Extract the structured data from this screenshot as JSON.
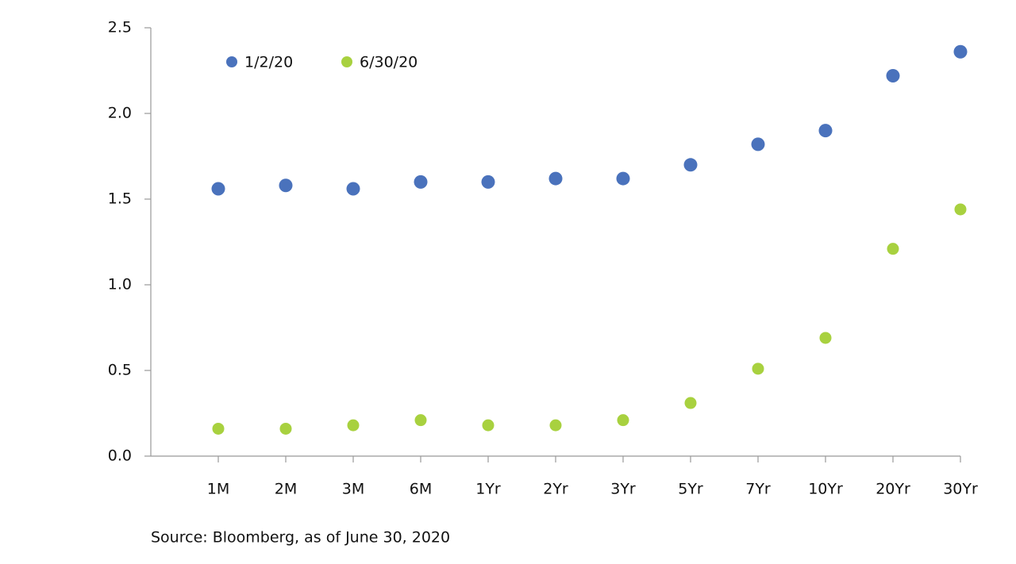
{
  "chart_data": {
    "type": "scatter",
    "categories": [
      "1M",
      "2M",
      "3M",
      "6M",
      "1Yr",
      "2Yr",
      "3Yr",
      "5Yr",
      "7Yr",
      "10Yr",
      "20Yr",
      "30Yr"
    ],
    "series": [
      {
        "name": "1/2/20",
        "color": "#4a72bc",
        "values": [
          1.56,
          1.58,
          1.56,
          1.6,
          1.6,
          1.62,
          1.62,
          1.7,
          1.82,
          1.9,
          2.22,
          2.36
        ]
      },
      {
        "name": "6/30/20",
        "color": "#a8d13f",
        "values": [
          0.16,
          0.16,
          0.18,
          0.21,
          0.18,
          0.18,
          0.21,
          0.31,
          0.51,
          0.69,
          1.21,
          1.44
        ]
      }
    ],
    "ylim": [
      0,
      2.5
    ],
    "yticks": [
      {
        "value": 0,
        "label": "0.0"
      },
      0.5,
      {
        "value": 1,
        "label": "1.0"
      },
      1.5,
      {
        "value": 2,
        "label": "2.0"
      },
      2.5
    ],
    "legend": "top-left",
    "source": "Source: Bloomberg, as of June 30, 2020"
  }
}
